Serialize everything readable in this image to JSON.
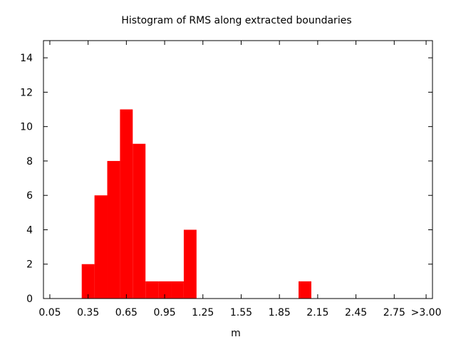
{
  "chart_data": {
    "type": "bar",
    "title": "Histogram of RMS along extracted boundaries",
    "xlabel": "m",
    "ylabel": "",
    "bin_width": 0.1,
    "xlim": [
      0.0,
      3.05
    ],
    "ylim": [
      0,
      15
    ],
    "bar_color": "#ff0000",
    "grid": false,
    "x_ticks": [
      {
        "value": 0.05,
        "label": "0.05"
      },
      {
        "value": 0.35,
        "label": "0.35"
      },
      {
        "value": 0.65,
        "label": "0.65"
      },
      {
        "value": 0.95,
        "label": "0.95"
      },
      {
        "value": 1.25,
        "label": "1.25"
      },
      {
        "value": 1.55,
        "label": "1.55"
      },
      {
        "value": 1.85,
        "label": "1.85"
      },
      {
        "value": 2.15,
        "label": "2.15"
      },
      {
        "value": 2.45,
        "label": "2.45"
      },
      {
        "value": 2.75,
        "label": "2.75"
      },
      {
        "value": 3.0,
        "label": ">3.00"
      }
    ],
    "y_ticks": [
      0,
      2,
      4,
      6,
      8,
      10,
      12,
      14
    ],
    "bins": [
      {
        "x": 0.35,
        "count": 2
      },
      {
        "x": 0.45,
        "count": 6
      },
      {
        "x": 0.55,
        "count": 8
      },
      {
        "x": 0.65,
        "count": 11
      },
      {
        "x": 0.75,
        "count": 9
      },
      {
        "x": 0.85,
        "count": 1
      },
      {
        "x": 0.95,
        "count": 1
      },
      {
        "x": 1.05,
        "count": 1
      },
      {
        "x": 1.15,
        "count": 4
      },
      {
        "x": 2.05,
        "count": 1
      }
    ]
  }
}
